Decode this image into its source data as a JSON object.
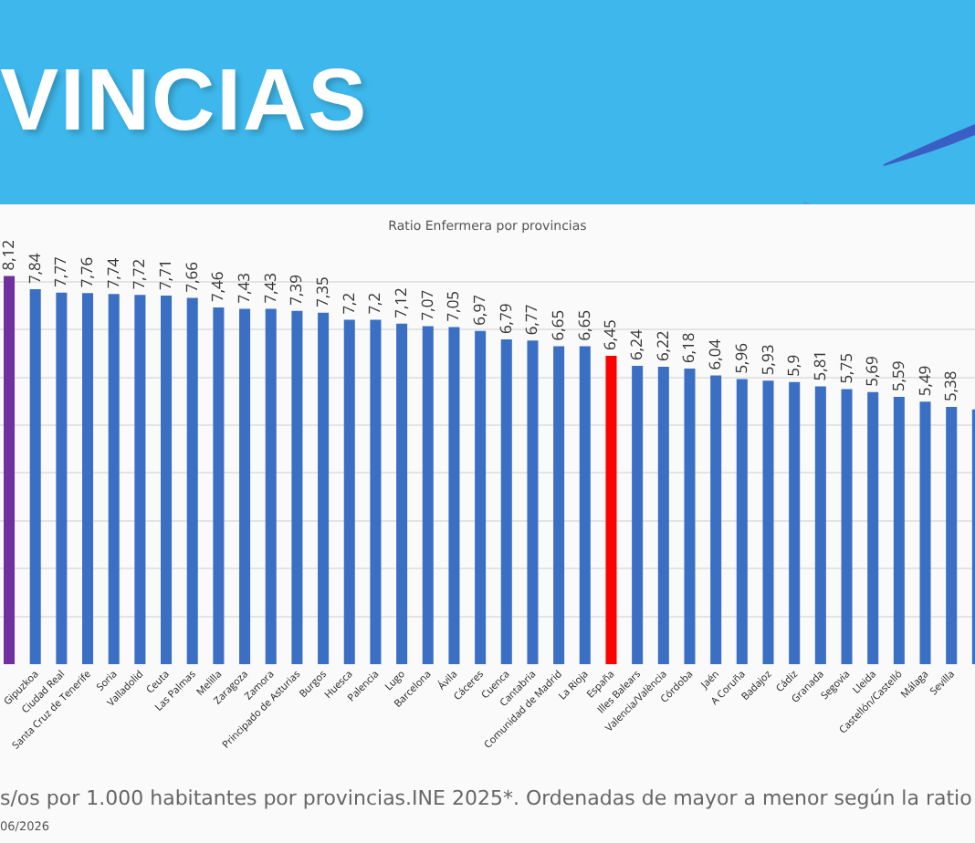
{
  "chart_data": {
    "type": "bar",
    "title": "VINCIAS",
    "subtitle": "Ratio Enfermera por provincias",
    "categories": [
      null,
      "Gipuzkoa",
      "Ciudad Real",
      "Santa Cruz de Tenerife",
      "Soria",
      "Valladolid",
      "Ceuta",
      "Las Palmas",
      "Melilla",
      "Zaragoza",
      "Zamora",
      "Principado de Asturias",
      "Burgos",
      "Huesca",
      "Palencia",
      "Lugo",
      "Barcelona",
      "Ávila",
      "Cáceres",
      "Cuenca",
      "Cantabria",
      "Comunidad de Madrid",
      "La Rioja",
      "España",
      "Illes Balears",
      "Valencia/València",
      "Córdoba",
      "Jaén",
      "A Coruña",
      "Badajoz",
      "Cádiz",
      "Granada",
      "Segovia",
      "Lleida",
      "Castellón/Castelló",
      "Málaga",
      "Sevilla",
      null
    ],
    "values": [
      8.12,
      7.84,
      7.77,
      7.76,
      7.74,
      7.72,
      7.71,
      7.66,
      7.46,
      7.43,
      7.43,
      7.39,
      7.35,
      7.2,
      7.2,
      7.12,
      7.07,
      7.05,
      6.97,
      6.79,
      6.77,
      6.65,
      6.65,
      6.45,
      6.24,
      6.22,
      6.18,
      6.04,
      5.96,
      5.93,
      5.9,
      5.81,
      5.75,
      5.69,
      5.59,
      5.49,
      5.38,
      5.33
    ],
    "value_labels": [
      "8,12",
      "7,84",
      "7,77",
      "7,76",
      "7,74",
      "7,72",
      "7,71",
      "7,66",
      "7,46",
      "7,43",
      "7,43",
      "7,39",
      "7,35",
      "7,2",
      "7,2",
      "7,12",
      "7,07",
      "7,05",
      "6,97",
      "6,79",
      "6,77",
      "6,65",
      "6,65",
      "6,45",
      "6,24",
      "6,22",
      "6,18",
      "6,04",
      "5,96",
      "5,93",
      "5,9",
      "5,81",
      "5,75",
      "5,69",
      "5,59",
      "5,49",
      "5,38",
      null
    ],
    "colors": [
      "#7030a0",
      "#3a6fc4",
      "#3a6fc4",
      "#3a6fc4",
      "#3a6fc4",
      "#3a6fc4",
      "#3a6fc4",
      "#3a6fc4",
      "#3a6fc4",
      "#3a6fc4",
      "#3a6fc4",
      "#3a6fc4",
      "#3a6fc4",
      "#3a6fc4",
      "#3a6fc4",
      "#3a6fc4",
      "#3a6fc4",
      "#3a6fc4",
      "#3a6fc4",
      "#3a6fc4",
      "#3a6fc4",
      "#3a6fc4",
      "#3a6fc4",
      "#ff0000",
      "#3a6fc4",
      "#3a6fc4",
      "#3a6fc4",
      "#3a6fc4",
      "#3a6fc4",
      "#3a6fc4",
      "#3a6fc4",
      "#3a6fc4",
      "#3a6fc4",
      "#3a6fc4",
      "#3a6fc4",
      "#3a6fc4",
      "#3a6fc4",
      "#3a6fc4"
    ],
    "grid": "y",
    "tick_labels": "x",
    "annotations": [
      "s/os por 1.000 habitantes por provincias.INE 2025*. Ordenadas de mayor a menor según la ratio",
      "06/2026"
    ]
  }
}
